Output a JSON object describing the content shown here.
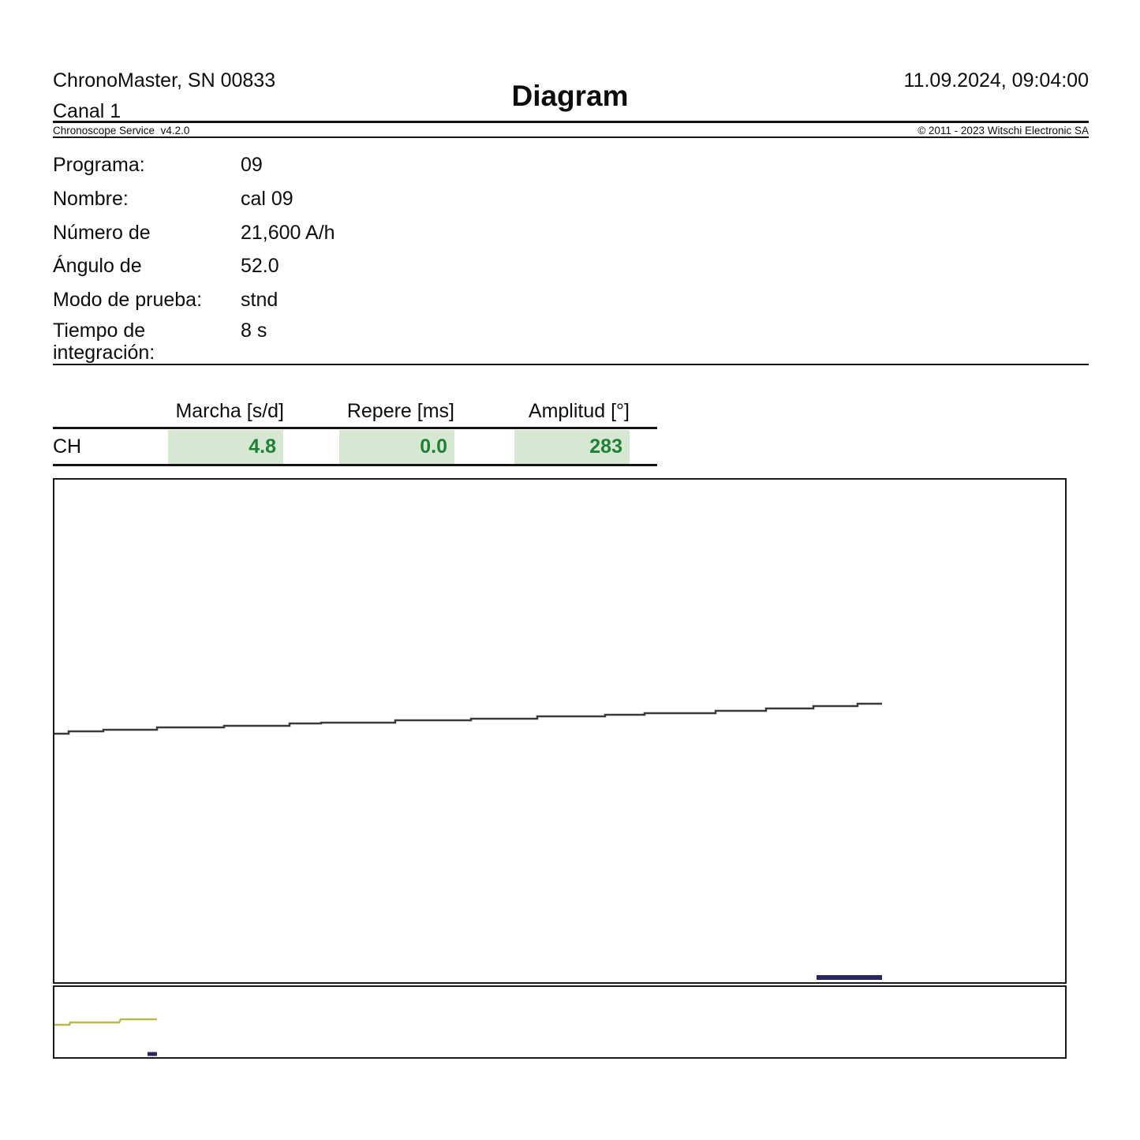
{
  "header": {
    "device": "ChronoMaster, SN 00833",
    "channel": "Canal 1",
    "title": "Diagram",
    "datetime": "11.09.2024, 09:04:00",
    "software": "Chronoscope Service  v4.2.0",
    "copyright": "© 2011 - 2023 Witschi Electronic SA"
  },
  "parameters": [
    {
      "label": "Programa:",
      "value": "09"
    },
    {
      "label": "Nombre:",
      "value": "cal 09"
    },
    {
      "label": "Número de",
      "value": "21,600 A/h"
    },
    {
      "label": "Ángulo de",
      "value": "52.0"
    },
    {
      "label": "Modo de prueba:",
      "value": "stnd"
    },
    {
      "label": "Tiempo de integración:",
      "value": "8 s"
    }
  ],
  "results_table": {
    "row_label": "CH",
    "columns": [
      "Marcha [s/d]",
      "Repere [ms]",
      "Amplitud [°]"
    ],
    "values": [
      "4.8",
      "0.0",
      "283"
    ],
    "value_color": "#1f8038",
    "cell_bg": "#d6e8d2"
  },
  "chart_data": {
    "type": "line",
    "title": "Diagram",
    "description": "Timegrapher beat trace; stepped line rising slightly left to right (rate +4.8 s/d). No axes or tick labels shown.",
    "axes_visible": false,
    "traces": [
      {
        "name": "rate-trace",
        "panel": "main",
        "color": "#3a3a3a",
        "width": 2.5,
        "points": [
          [
            0,
            322
          ],
          [
            18,
            322
          ],
          [
            18,
            319
          ],
          [
            62,
            319
          ],
          [
            62,
            317
          ],
          [
            130,
            317
          ],
          [
            130,
            314
          ],
          [
            215,
            314
          ],
          [
            215,
            312
          ],
          [
            298,
            312
          ],
          [
            298,
            309
          ],
          [
            338,
            309
          ],
          [
            338,
            308
          ],
          [
            432,
            308
          ],
          [
            432,
            305
          ],
          [
            528,
            305
          ],
          [
            528,
            303
          ],
          [
            612,
            303
          ],
          [
            612,
            300
          ],
          [
            698,
            300
          ],
          [
            698,
            298
          ],
          [
            748,
            298
          ],
          [
            748,
            296
          ],
          [
            838,
            296
          ],
          [
            838,
            293
          ],
          [
            902,
            293
          ],
          [
            902,
            290
          ],
          [
            962,
            290
          ],
          [
            962,
            287
          ],
          [
            1018,
            287
          ],
          [
            1018,
            284
          ],
          [
            1049,
            284
          ]
        ]
      },
      {
        "name": "marker-dash",
        "panel": "main",
        "color": "#28285e",
        "width": 6,
        "points": [
          [
            966,
            631
          ],
          [
            1049,
            631
          ]
        ]
      },
      {
        "name": "mini-trace",
        "panel": "strip",
        "color": "#b9b94f",
        "width": 2.5,
        "points": [
          [
            0,
            48
          ],
          [
            19,
            48
          ],
          [
            20,
            45
          ],
          [
            82,
            45
          ],
          [
            84,
            41
          ],
          [
            130,
            41
          ]
        ]
      },
      {
        "name": "mini-dash",
        "panel": "strip",
        "color": "#28285e",
        "width": 5,
        "points": [
          [
            118,
            85
          ],
          [
            130,
            85
          ]
        ]
      }
    ]
  }
}
